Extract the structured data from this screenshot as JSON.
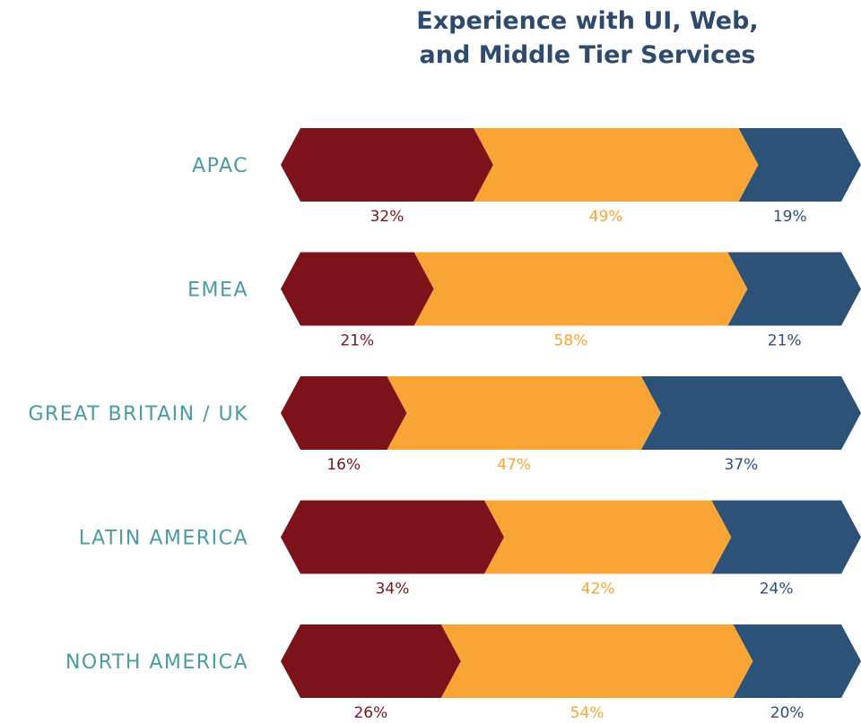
{
  "chart_data": {
    "type": "stacked_bar_horizontal",
    "title": [
      "Experience with UI, Web,",
      "and Middle Tier Services"
    ],
    "categories": [
      "APAC",
      "EMEA",
      "GREAT BRITAIN / UK",
      "LATIN AMERICA",
      "NORTH AMERICA"
    ],
    "xlim": [
      0,
      100
    ],
    "series": [
      {
        "color": "#7d131a",
        "values": [
          32,
          21,
          16,
          34,
          26
        ],
        "value_labels": [
          "32%",
          "21%",
          "16%",
          "34%",
          "26%"
        ]
      },
      {
        "color": "#f8a535",
        "values": [
          49,
          58,
          47,
          42,
          54
        ],
        "value_labels": [
          "49%",
          "58%",
          "47%",
          "42%",
          "54%"
        ]
      },
      {
        "color": "#2d5277",
        "values": [
          19,
          21,
          37,
          24,
          20
        ],
        "value_labels": [
          "19%",
          "21%",
          "37%",
          "24%",
          "20%"
        ]
      }
    ]
  }
}
